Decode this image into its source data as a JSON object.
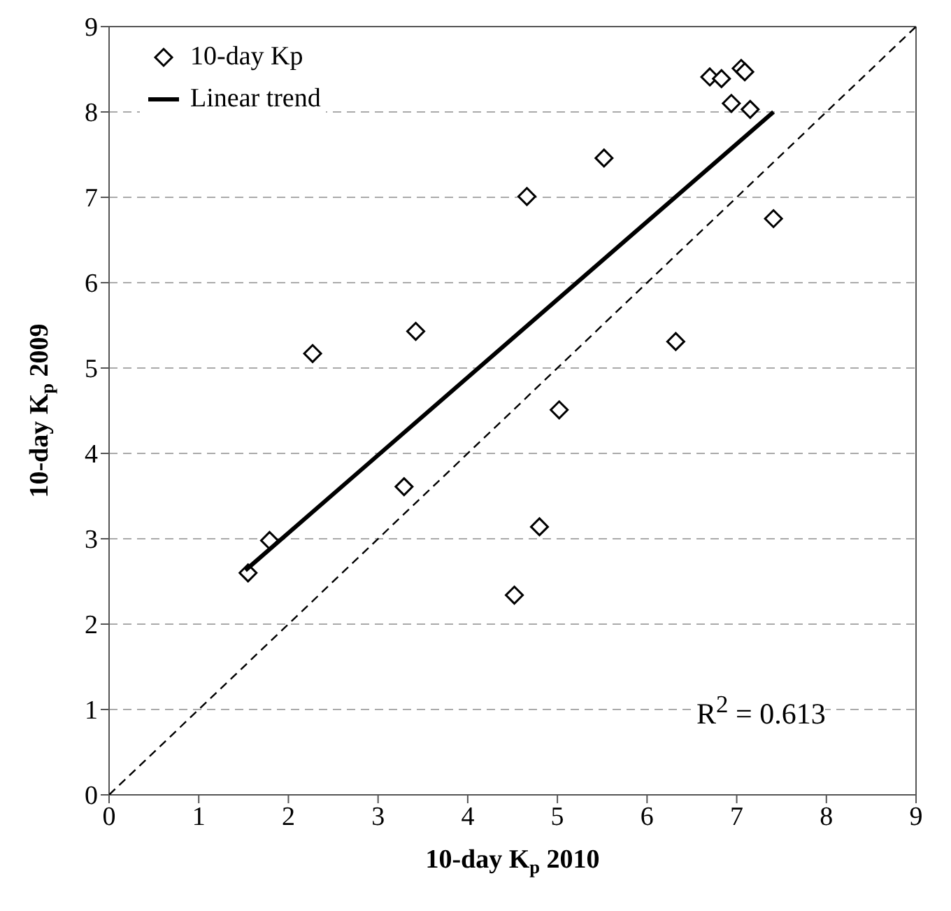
{
  "chart_data": {
    "type": "scatter",
    "xlabel": "10-day K$_{p}$ 2010",
    "ylabel": "10-day K$_{p}$ 2009",
    "xlim": [
      0,
      9
    ],
    "ylim": [
      0,
      9
    ],
    "xticks": [
      0,
      1,
      2,
      3,
      4,
      5,
      6,
      7,
      8,
      9
    ],
    "yticks": [
      0,
      1,
      2,
      3,
      4,
      5,
      6,
      7,
      8,
      9
    ],
    "grid": "y",
    "legend": "top left",
    "annotations": [
      "R$^{2}$ = 0.613"
    ],
    "series": [
      {
        "name": "10-day Kp",
        "type": "scatter",
        "marker": "diamond",
        "color": "#000000",
        "x": [
          1.55,
          1.79,
          2.27,
          3.42,
          3.29,
          4.52,
          4.66,
          5.52,
          6.32,
          5.02,
          4.8,
          6.7,
          6.83,
          7.05,
          7.09,
          6.94,
          7.15,
          7.41
        ],
        "values": [
          2.6,
          2.98,
          5.17,
          5.43,
          3.61,
          2.34,
          7.01,
          7.46,
          5.31,
          4.51,
          3.14,
          8.41,
          8.39,
          8.51,
          8.47,
          8.1,
          8.03,
          6.75
        ]
      },
      {
        "name": "Linear trend",
        "type": "line",
        "line_style": "solid",
        "color": "#000000",
        "x": [
          1.52,
          7.41
        ],
        "values": [
          2.63,
          8.0
        ]
      },
      {
        "type": "line",
        "line_style": "dashed",
        "color": "#000000",
        "x": [
          0,
          9
        ],
        "values": [
          0,
          9
        ]
      }
    ]
  }
}
